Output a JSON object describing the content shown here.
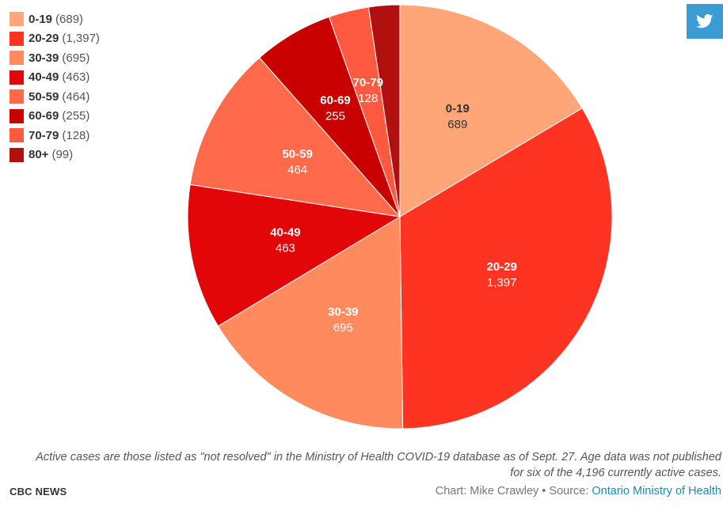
{
  "chart_data": {
    "type": "pie",
    "categories": [
      "0-19",
      "20-29",
      "30-39",
      "40-49",
      "50-59",
      "60-69",
      "70-79",
      "80+"
    ],
    "values": [
      689,
      1397,
      695,
      463,
      464,
      255,
      128,
      99
    ],
    "value_labels": [
      "689",
      "1,397",
      "695",
      "463",
      "464",
      "255",
      "128",
      "99"
    ],
    "legend_values": [
      "(689)",
      "(1,397)",
      "(695)",
      "(463)",
      "(464)",
      "(255)",
      "(128)",
      "(99)"
    ],
    "colors": [
      "#fea677",
      "#ff3322",
      "#ff8a5e",
      "#e30609",
      "#ff6a4b",
      "#c90000",
      "#ff5a40",
      "#b20f0f"
    ],
    "label_colors": [
      "#333333",
      "#ffffff",
      "#ffffff",
      "#ffffff",
      "#ffffff",
      "#ffffff",
      "#ffffff",
      "#ffffff"
    ],
    "slice_labels_shown": [
      true,
      true,
      true,
      true,
      true,
      true,
      true,
      false
    ],
    "legend_placement": "top-left",
    "start_angle_deg": 0,
    "direction": "clockwise"
  },
  "note": "Active cases are those listed as \"not resolved\" in the Ministry of Health COVID-19 database as of Sept. 27. Age data was not published for six of the 4,196 currently active cases.",
  "brand": "CBC NEWS",
  "credit": {
    "prefix": "Chart: Mike Crawley • Source: ",
    "source_link": "Ontario Ministry of Health"
  },
  "share": {
    "icon": "twitter-icon"
  }
}
